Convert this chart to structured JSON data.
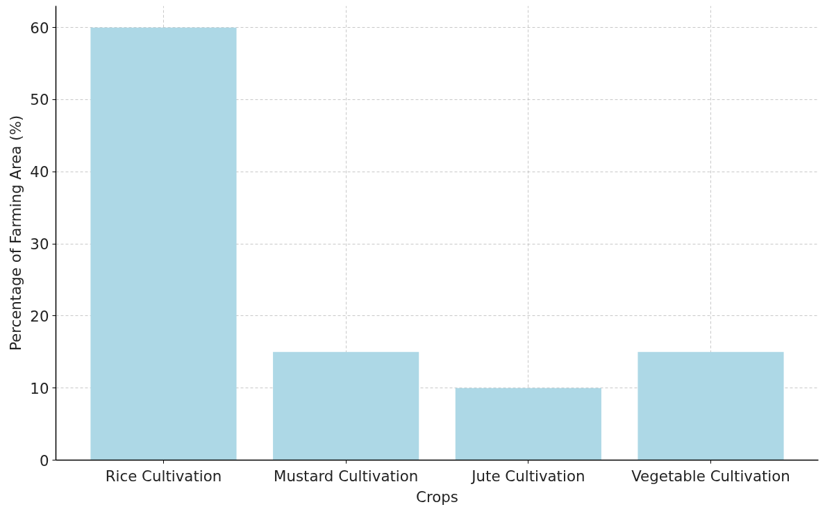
{
  "chart_data": {
    "type": "bar",
    "xlabel": "Crops",
    "ylabel": "Percentage of Farming Area (%)",
    "categories": [
      "Rice Cultivation",
      "Mustard Cultivation",
      "Jute Cultivation",
      "Vegetable Cultivation"
    ],
    "values": [
      60,
      15,
      10,
      15
    ],
    "color": "#add8e6",
    "ylim": [
      0,
      63
    ],
    "yticks": [
      0,
      10,
      20,
      30,
      40,
      50,
      60
    ],
    "grid": true
  }
}
